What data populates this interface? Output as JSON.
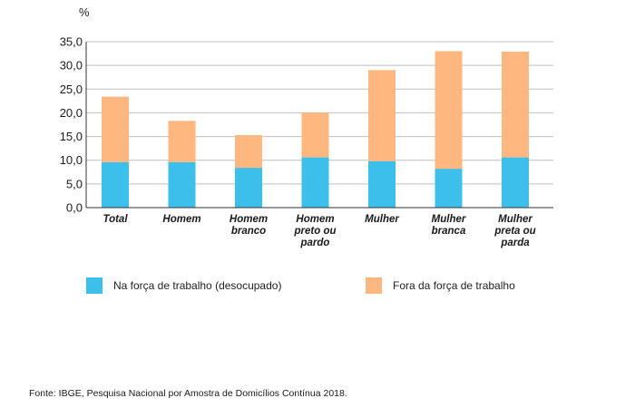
{
  "chart_data": {
    "type": "bar",
    "stacked": true,
    "unit_label": "%",
    "categories": [
      [
        "Total"
      ],
      [
        "Homem"
      ],
      [
        "Homem",
        "branco"
      ],
      [
        "Homem",
        "preto ou",
        "pardo"
      ],
      [
        "Mulher"
      ],
      [
        "Mulher",
        "branca"
      ],
      [
        "Mulher",
        "preta ou",
        "parda"
      ]
    ],
    "series": [
      {
        "name": "Na força de trabalho (desocupado)",
        "color": "#3dbfeb",
        "values": [
          9.6,
          9.6,
          8.4,
          10.6,
          9.8,
          8.2,
          10.6
        ]
      },
      {
        "name": "Fora da força de trabalho",
        "color": "#fdb77f",
        "values": [
          13.8,
          8.7,
          6.9,
          9.4,
          19.2,
          24.8,
          22.3
        ]
      }
    ],
    "ylim": [
      0,
      35
    ],
    "yticks": [
      "0,0",
      "5,0",
      "10,0",
      "15,0",
      "20,0",
      "25,0",
      "30,0",
      "35,0"
    ]
  },
  "source": "Fonte: IBGE, Pesquisa Nacional por Amostra de Domicílios Contínua 2018."
}
